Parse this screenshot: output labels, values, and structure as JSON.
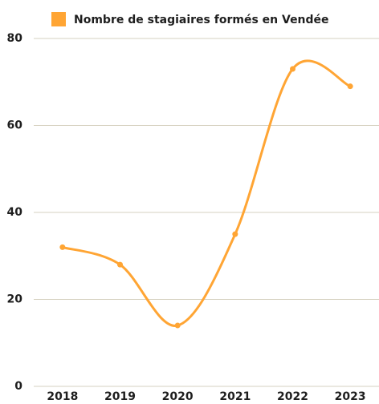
{
  "chart_data": {
    "type": "line",
    "categories": [
      "2018",
      "2019",
      "2020",
      "2021",
      "2022",
      "2023"
    ],
    "series": [
      {
        "name": "Nombre de stagiaires formés en Vendée",
        "color": "#ffa534",
        "values": [
          32,
          28,
          14,
          35,
          73,
          69
        ]
      }
    ],
    "ylim": [
      0,
      80
    ],
    "yticks": [
      0,
      20,
      40,
      60,
      80
    ],
    "grid": true,
    "smooth": true
  }
}
